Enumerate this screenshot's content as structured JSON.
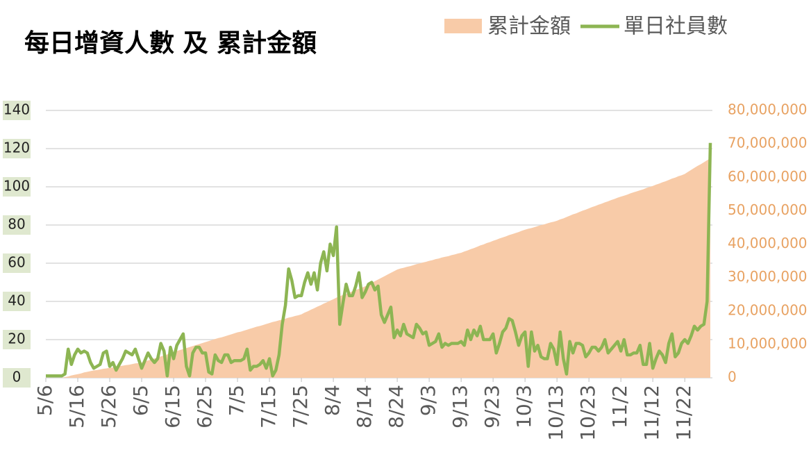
{
  "chart_data": {
    "type": "line",
    "title": "每日增資人數 及 累計金額",
    "categories": [
      "5/6",
      null,
      null,
      null,
      null,
      null,
      null,
      null,
      null,
      null,
      "5/16",
      null,
      null,
      null,
      null,
      null,
      null,
      null,
      null,
      null,
      "5/26",
      null,
      null,
      null,
      null,
      null,
      null,
      null,
      null,
      null,
      "6/5",
      null,
      null,
      null,
      null,
      null,
      null,
      null,
      null,
      null,
      "6/15",
      null,
      null,
      null,
      null,
      null,
      null,
      null,
      null,
      null,
      "6/25",
      null,
      null,
      null,
      null,
      null,
      null,
      null,
      null,
      null,
      "7/5",
      null,
      null,
      null,
      null,
      null,
      null,
      null,
      null,
      null,
      "7/15",
      null,
      null,
      null,
      null,
      null,
      null,
      null,
      null,
      null,
      "7/25",
      null,
      null,
      null,
      null,
      null,
      null,
      null,
      null,
      null,
      "8/4",
      null,
      null,
      null,
      null,
      null,
      null,
      null,
      null,
      null,
      "8/14",
      null,
      null,
      null,
      null,
      null,
      null,
      null,
      null,
      null,
      "8/24",
      null,
      null,
      null,
      null,
      null,
      null,
      null,
      null,
      null,
      "9/3",
      null,
      null,
      null,
      null,
      null,
      null,
      null,
      null,
      null,
      "9/13",
      null,
      null,
      null,
      null,
      null,
      null,
      null,
      null,
      null,
      "9/23",
      null,
      null,
      null,
      null,
      null,
      null,
      null,
      null,
      null,
      "10/3",
      null,
      null,
      null,
      null,
      null,
      null,
      null,
      null,
      null,
      "10/13",
      null,
      null,
      null,
      null,
      null,
      null,
      null,
      null,
      null,
      "10/23",
      null,
      null,
      null,
      null,
      null,
      null,
      null,
      null,
      null,
      "11/2",
      null,
      null,
      null,
      null,
      null,
      null,
      null,
      null,
      null,
      "11/12",
      null,
      null,
      null,
      null,
      null,
      null,
      null,
      null,
      null,
      "11/22",
      null,
      null,
      null,
      null,
      null,
      null,
      null,
      null
    ],
    "series": [
      {
        "name": "累計金額",
        "type": "area",
        "axis": "y2",
        "color": "#f8cba8",
        "values": [
          0,
          0,
          0,
          0,
          0,
          0,
          200000.0,
          400000.0,
          700000.0,
          900000.0,
          1100000.0,
          1300000.0,
          1600000.0,
          1800000.0,
          2000000.0,
          2200000.0,
          2300000.0,
          2500000.0,
          2700000.0,
          2800000.0,
          3000000.0,
          3100000.0,
          3300000.0,
          3500000.0,
          3600000.0,
          3800000.0,
          3900000.0,
          4100000.0,
          4300000.0,
          4400000.0,
          4600000.0,
          4900000.0,
          5200000.0,
          5500000.0,
          5800000.0,
          6100000.0,
          6400000.0,
          6700000.0,
          7000000.0,
          7300000.0,
          7700000.0,
          8000000.0,
          8300000.0,
          8600000.0,
          8900000.0,
          9200000.0,
          9500000.0,
          9800000.0,
          10100000.0,
          10400000.0,
          10700000.0,
          11000000.0,
          11300000.0,
          11600000.0,
          11900000.0,
          12100000.0,
          12400000.0,
          12700000.0,
          13000000.0,
          13300000.0,
          13600000.0,
          13800000.0,
          14100000.0,
          14400000.0,
          14700000.0,
          15000000.0,
          15300000.0,
          15500000.0,
          15800000.0,
          16100000.0,
          16400000.0,
          16700000.0,
          16900000.0,
          17200000.0,
          17400000.0,
          17700000.0,
          18000000.0,
          18200000.0,
          18500000.0,
          18700000.0,
          19000000.0,
          19500000.0,
          19900000.0,
          20400000.0,
          20800000.0,
          21300000.0,
          21700000.0,
          22200000.0,
          22600000.0,
          23100000.0,
          23500000.0,
          24000000.0,
          24400000.0,
          24800000.0,
          25100000.0,
          25500000.0,
          25900000.0,
          26300000.0,
          26600000.0,
          27000000.0,
          27400000.0,
          27900000.0,
          28400000.0,
          28900000.0,
          29400000.0,
          29900000.0,
          30400000.0,
          30900000.0,
          31400000.0,
          31900000.0,
          32400000.0,
          32700000.0,
          32900000.0,
          33200000.0,
          33400000.0,
          33700000.0,
          34000000.0,
          34200000.0,
          34500000.0,
          34700000.0,
          35000000.0,
          35200000.0,
          35500000.0,
          35700000.0,
          36000000.0,
          36200000.0,
          36400000.0,
          36700000.0,
          36900000.0,
          37200000.0,
          37400000.0,
          37800000.0,
          38100000.0,
          38500000.0,
          38800000.0,
          39200000.0,
          39600000.0,
          39900000.0,
          40300000.0,
          40600000.0,
          41000000.0,
          41300000.0,
          41700000.0,
          42000000.0,
          42300000.0,
          42700000.0,
          43000000.0,
          43300000.0,
          43600000.0,
          44000000.0,
          44300000.0,
          44600000.0,
          44800000.0,
          45100000.0,
          45400000.0,
          45700000.0,
          45900000.0,
          46200000.0,
          46500000.0,
          46700000.0,
          47000000.0,
          47400000.0,
          47700000.0,
          48100000.0,
          48500000.0,
          48900000.0,
          49200000.0,
          49600000.0,
          50000000.0,
          50300000.0,
          50700000.0,
          51100000.0,
          51400000.0,
          51800000.0,
          52100000.0,
          52500000.0,
          52800000.0,
          53200000.0,
          53500000.0,
          53900000.0,
          54200000.0,
          54500000.0,
          54800000.0,
          55200000.0,
          55500000.0,
          55800000.0,
          56100000.0,
          56400000.0,
          56800000.0,
          57100000.0,
          57400000.0,
          57800000.0,
          58100000.0,
          58500000.0,
          58800000.0,
          59200000.0,
          59600000.0,
          59900000.0,
          60300000.0,
          60600000.0,
          61000000.0,
          61600000.0,
          62200000.0,
          62800000.0,
          63400000.0,
          63900000.0,
          64500000.0,
          65100000.0,
          65700000.0
        ]
      },
      {
        "name": "單日社員數",
        "type": "line",
        "color": "#8db553",
        "values": [
          1,
          1,
          1,
          1,
          1,
          1,
          2,
          15,
          7,
          12,
          15,
          13,
          14,
          13,
          8,
          5,
          6,
          7,
          13,
          14,
          6,
          8,
          4,
          7,
          10,
          14,
          13,
          12,
          15,
          10,
          5,
          9,
          13,
          10,
          8,
          10,
          18,
          14,
          1,
          16,
          10,
          17,
          20,
          23,
          6,
          1,
          13,
          16,
          16,
          13,
          13,
          3,
          2,
          12,
          9,
          8,
          12,
          12,
          8,
          9,
          9,
          9,
          10,
          15,
          4,
          6,
          6,
          7,
          9,
          5,
          10,
          1,
          4,
          12,
          28,
          38,
          57,
          51,
          42,
          43,
          43,
          50,
          55,
          49,
          55,
          46,
          60,
          66,
          56,
          70,
          64,
          79,
          28,
          39,
          49,
          43,
          43,
          48,
          55,
          42,
          45,
          49,
          50,
          46,
          48,
          33,
          29,
          33,
          37,
          21,
          25,
          22,
          28,
          23,
          22,
          21,
          28,
          26,
          23,
          24,
          17,
          18,
          19,
          23,
          16,
          18,
          17,
          18,
          18,
          18,
          19,
          17,
          25,
          20,
          25,
          22,
          27,
          20,
          20,
          20,
          23,
          13,
          18,
          24,
          26,
          31,
          30,
          24,
          17,
          22,
          24,
          6,
          24,
          14,
          17,
          11,
          10,
          10,
          18,
          15,
          7,
          24,
          10,
          2,
          19,
          13,
          18,
          18,
          17,
          11,
          13,
          16,
          16,
          14,
          16,
          20,
          13,
          15,
          17,
          19,
          14,
          20,
          12,
          12,
          13,
          13,
          17,
          7,
          7,
          18,
          5,
          10,
          14,
          12,
          8,
          18,
          23,
          11,
          13,
          18,
          20,
          18,
          22,
          27,
          25,
          27,
          28,
          40,
          123
        ]
      }
    ],
    "ylim": [
      0,
      140
    ],
    "yticks": [
      0,
      20,
      40,
      60,
      80,
      100,
      120,
      140
    ],
    "y2lim": [
      0,
      80000000
    ],
    "y2ticks": [
      0,
      {
        "value": 10000000,
        "label": "10,000,000"
      },
      {
        "value": 20000000,
        "label": "20,000,000"
      },
      {
        "value": 30000000,
        "label": "30,000,000"
      },
      {
        "value": 40000000,
        "label": "40,000,000"
      },
      {
        "value": 50000000,
        "label": "50,000,000"
      },
      {
        "value": 60000000,
        "label": "60,000,000"
      },
      {
        "value": 70000000,
        "label": "70,000,000"
      },
      {
        "value": 80000000,
        "label": "80,000,000"
      }
    ],
    "grid": true,
    "legend": "top-right"
  }
}
